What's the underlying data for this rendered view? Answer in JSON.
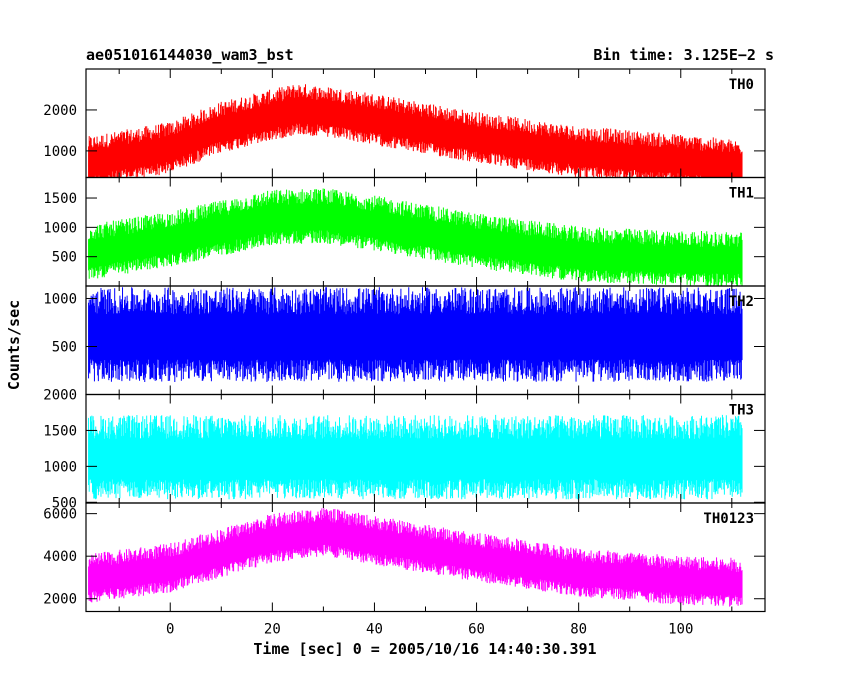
{
  "chart_data": {
    "type": "line",
    "title_left": "ae051016144030_wam3_bst",
    "title_right": "Bin time: 3.125E−2 s",
    "xlabel": "Time [sec] 0 = 2005/10/16 14:40:30.391",
    "ylabel": "Counts/sec",
    "xlim": [
      -16.5,
      116.5
    ],
    "x_ticks": [
      0,
      20,
      40,
      60,
      80,
      100
    ],
    "x_range": [
      -16,
      112
    ],
    "panels": [
      {
        "name": "TH0",
        "color": "#ff0000",
        "ylim": [
          350,
          3000
        ],
        "y_ticks": [
          1000,
          2000
        ],
        "y_tick_labels": [
          "1000",
          "2000"
        ],
        "profile": [
          [
            -16,
            700
          ],
          [
            0,
            1050
          ],
          [
            10,
            1550
          ],
          [
            25,
            2000
          ],
          [
            35,
            1850
          ],
          [
            60,
            1300
          ],
          [
            80,
            950
          ],
          [
            100,
            750
          ],
          [
            112,
            600
          ]
        ],
        "spread": 600
      },
      {
        "name": "TH1",
        "color": "#00ff00",
        "ylim": [
          0,
          1850
        ],
        "y_ticks": [
          500,
          1000,
          1500
        ],
        "y_tick_labels": [
          "500",
          "1000",
          "1500"
        ],
        "profile": [
          [
            -16,
            550
          ],
          [
            0,
            780
          ],
          [
            20,
            1150
          ],
          [
            30,
            1180
          ],
          [
            40,
            1050
          ],
          [
            60,
            750
          ],
          [
            80,
            520
          ],
          [
            100,
            450
          ],
          [
            112,
            430
          ]
        ],
        "spread": 450
      },
      {
        "name": "TH2",
        "color": "#0000ff",
        "ylim": [
          0,
          1130
        ],
        "y_ticks": [
          500,
          1000
        ],
        "y_tick_labels": [
          "500",
          "1000"
        ],
        "profile": [
          [
            -16,
            600
          ],
          [
            112,
            600
          ]
        ],
        "spread": 470
      },
      {
        "name": "TH3",
        "color": "#00ffff",
        "ylim": [
          490,
          2000
        ],
        "y_ticks": [
          500,
          1000,
          1500,
          2000
        ],
        "y_tick_labels": [
          "500",
          "1000",
          "1500",
          "2000"
        ],
        "profile": [
          [
            -16,
            1100
          ],
          [
            112,
            1100
          ]
        ],
        "spread": 560
      },
      {
        "name": "TH0123",
        "color": "#ff00ff",
        "ylim": [
          1400,
          6500
        ],
        "y_ticks": [
          2000,
          4000,
          6000
        ],
        "y_tick_labels": [
          "2000",
          "4000",
          "6000"
        ],
        "profile": [
          [
            -16,
            2900
          ],
          [
            0,
            3400
          ],
          [
            20,
            4800
          ],
          [
            30,
            5100
          ],
          [
            40,
            4700
          ],
          [
            60,
            3900
          ],
          [
            80,
            3200
          ],
          [
            100,
            2800
          ],
          [
            112,
            2700
          ]
        ],
        "spread": 1100
      }
    ]
  }
}
